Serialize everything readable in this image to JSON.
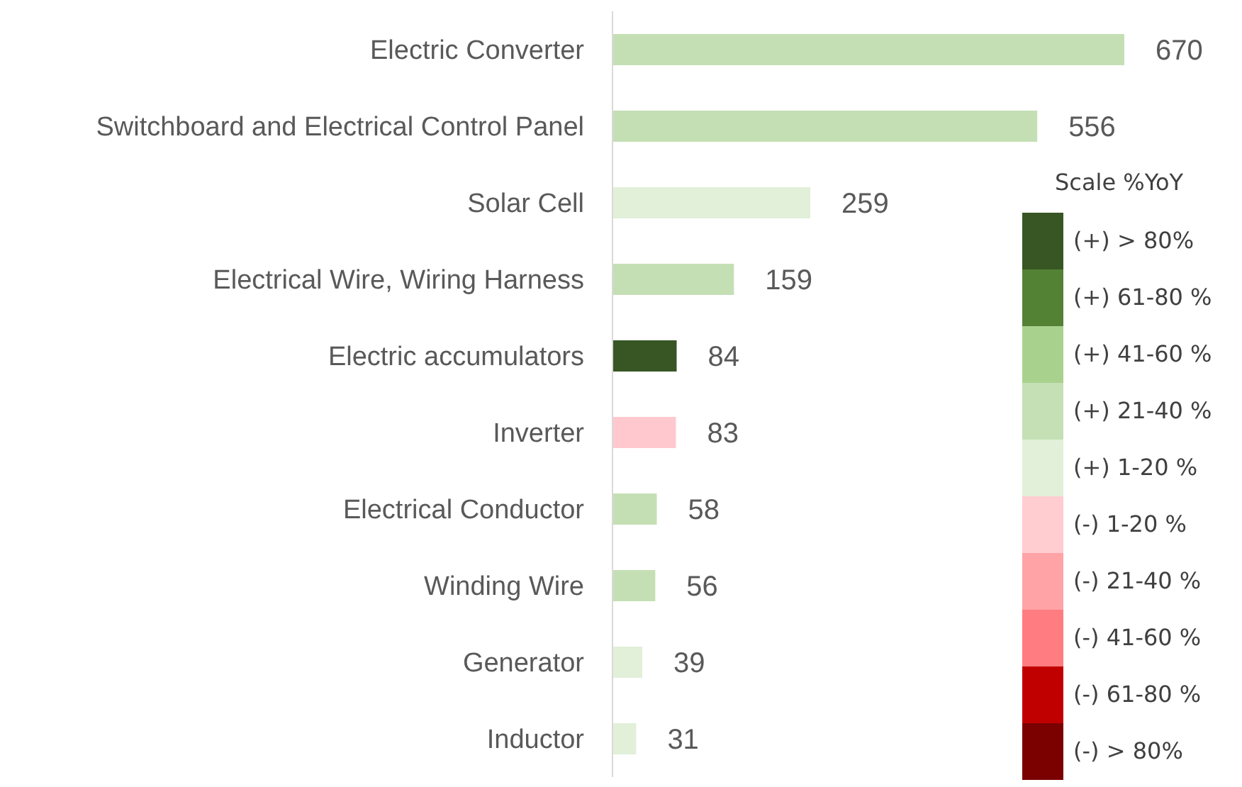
{
  "chart_data": {
    "type": "bar",
    "orientation": "horizontal",
    "data_labels": true,
    "categories": [
      "Electric Converter",
      "Switchboard and Electrical Control Panel",
      "Solar Cell",
      "Electrical Wire, Wiring Harness",
      "Electric accumulators",
      "Inverter",
      "Electrical Conductor",
      "Winding Wire",
      "Generator",
      "Inductor"
    ],
    "values": [
      670,
      556,
      259,
      159,
      84,
      83,
      58,
      56,
      39,
      31
    ],
    "colors": [
      "#c5dfb5",
      "#c5dfb5",
      "#e2efd9",
      "#c5dfb5",
      "#375623",
      "#ffc7ce",
      "#c5dfb5",
      "#c5dfb5",
      "#e2efd9",
      "#e2efd9"
    ],
    "legend_title": "Scale %YoY",
    "annotations": [
      "(+) > 80%",
      "(+) 61-80 %",
      "(+) 41-60 %",
      "(+) 21-40 %",
      "(+) 1-20 %",
      "(-) 1-20 %",
      "(-) 21-40 %",
      "(-) 41-60 %",
      "(-) 61-80 %",
      "(-) > 80%"
    ]
  }
}
